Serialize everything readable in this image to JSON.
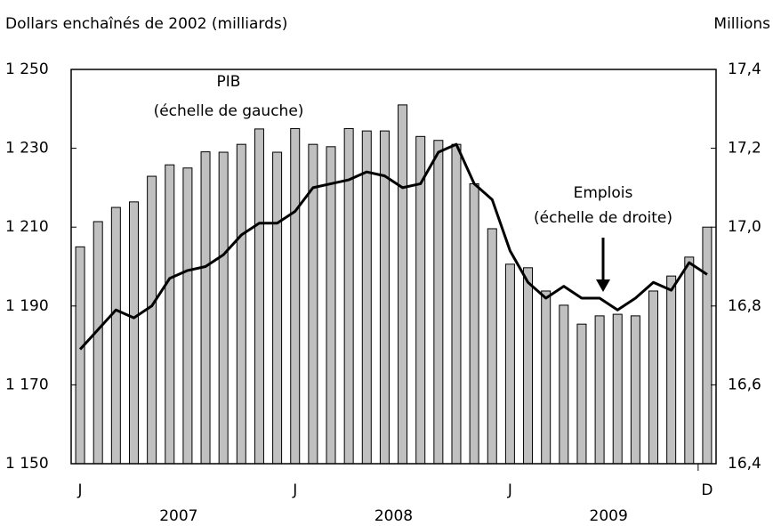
{
  "chart_data": {
    "type": "bar_line",
    "y_label": "Dollars enchaînés de 2002 (milliards)",
    "y2_label": "Millions",
    "categories": [
      "J",
      null,
      null,
      null,
      null,
      null,
      null,
      null,
      null,
      null,
      null,
      null,
      "J",
      null,
      null,
      null,
      null,
      null,
      null,
      null,
      null,
      null,
      null,
      null,
      "J",
      null,
      null,
      null,
      null,
      null,
      null,
      null,
      null,
      null,
      null,
      "D"
    ],
    "x_groups": [
      "2007",
      "2008",
      "2009"
    ],
    "series": [
      {
        "name": "PIB",
        "type": "bar",
        "color": "#c0c0c0",
        "axis": "y",
        "values": [
          1205,
          1211.4,
          1215,
          1216.4,
          1222.9,
          1225.8,
          1225,
          1229.1,
          1229,
          1231,
          1234.9,
          1229,
          1235,
          1231,
          1230.4,
          1235,
          1234.4,
          1234.4,
          1241,
          1233,
          1232,
          1231,
          1221,
          1209.6,
          1200.6,
          1199.7,
          1193.8,
          1190.2,
          1185.4,
          1187.5,
          1187.9,
          1187.5,
          1193.8,
          1197.6,
          1202.4,
          1210
        ]
      },
      {
        "name": "Emplois",
        "type": "line",
        "color": "#000000",
        "axis": "y2",
        "values": [
          16.69,
          16.74,
          16.79,
          16.77,
          16.8,
          16.87,
          16.89,
          16.9,
          16.93,
          16.98,
          17.01,
          17.01,
          17.04,
          17.1,
          17.11,
          17.12,
          17.14,
          17.13,
          17.1,
          17.11,
          17.19,
          17.21,
          17.11,
          17.07,
          16.94,
          16.86,
          16.82,
          16.85,
          16.82,
          16.82,
          16.79,
          16.82,
          16.86,
          16.84,
          16.91,
          16.88
        ]
      }
    ],
    "annotations": [
      "PIB",
      "(échelle de gauche)",
      "Emplois",
      "(échelle de droite)"
    ],
    "ylim": [
      1150,
      1250
    ],
    "yticks": [
      {
        "value": 1150,
        "label": "1 150"
      },
      {
        "value": 1170,
        "label": "1 170"
      },
      {
        "value": 1190,
        "label": "1 190"
      },
      {
        "value": 1210,
        "label": "1 210"
      },
      {
        "value": 1230,
        "label": "1 230"
      },
      {
        "value": 1250,
        "label": "1 250"
      }
    ],
    "y2lim": [
      16.4,
      17.4
    ],
    "y2ticks": [
      {
        "value": 16.4,
        "label": "16,4"
      },
      {
        "value": 16.6,
        "label": "16,6"
      },
      {
        "value": 16.8,
        "label": "16,8"
      },
      {
        "value": 17.0,
        "label": "17,0"
      },
      {
        "value": 17.2,
        "label": "17,2"
      },
      {
        "value": 17.4,
        "label": "17,4"
      }
    ],
    "grid": false
  }
}
